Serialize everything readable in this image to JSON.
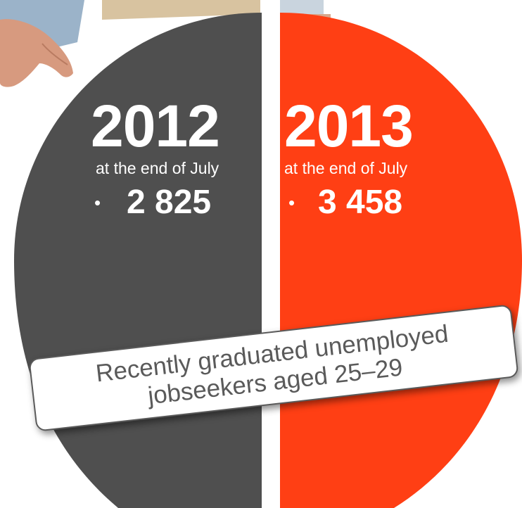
{
  "left_panel": {
    "year": "2012",
    "period": "at the end of July",
    "bullet": "•",
    "value": "2 825",
    "color": "#4f4f4f"
  },
  "right_panel": {
    "year": "2013",
    "period": "at the end of July",
    "bullet": "•",
    "value": "3 458",
    "color": "#ff3f14"
  },
  "caption": {
    "line1": "Recently graduated unemployed",
    "line2": "jobseekers aged 25–29"
  }
}
